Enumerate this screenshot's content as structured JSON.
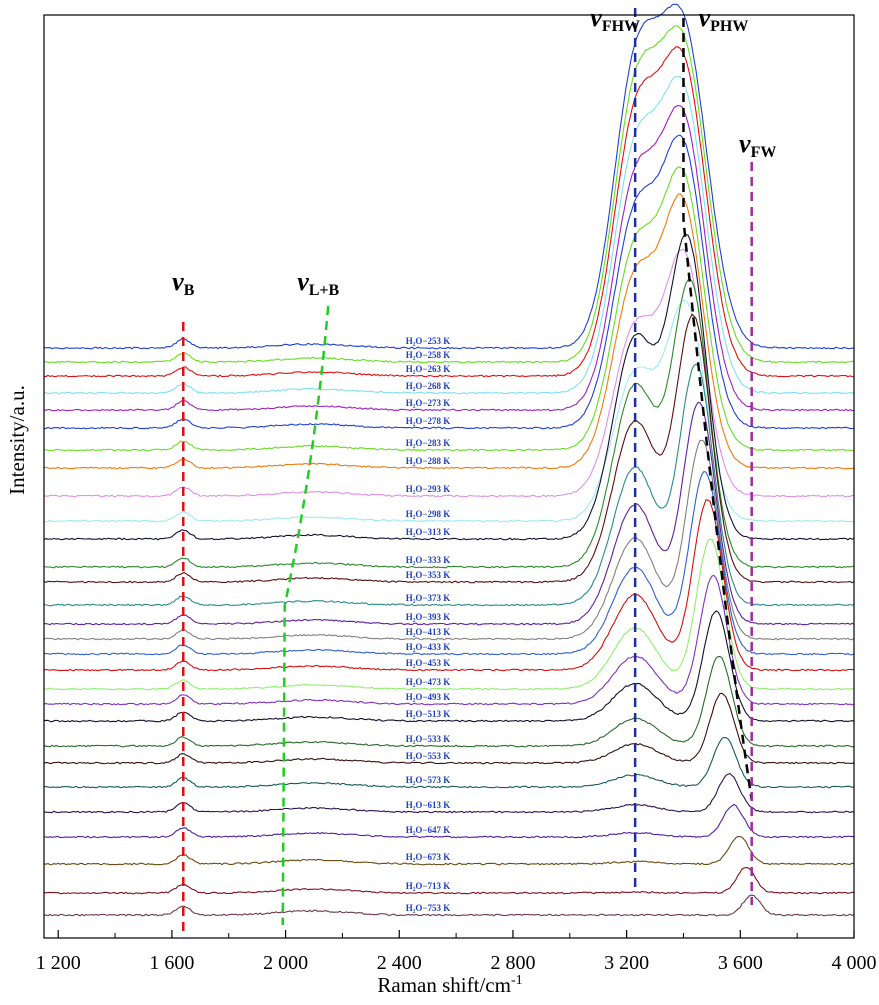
{
  "chart_data": {
    "type": "line",
    "title": "",
    "xlabel": "Raman shift/cm",
    "xlabel_superscript": "-1",
    "ylabel": "Intensity/a.u.",
    "xlim": [
      1150,
      4000
    ],
    "x_ticks": [
      1200,
      1600,
      2000,
      2400,
      2800,
      3200,
      3600,
      4000
    ],
    "x_tick_labels": [
      "1 200",
      "1 600",
      "2 000",
      "2 400",
      "2 800",
      "3 200",
      "3 600",
      "4 000"
    ],
    "grid": false,
    "legend": "inline labels next to each curve",
    "y_axis_ticks_shown": false,
    "series": [
      {
        "name": "H₂O−253 K",
        "color": "#2040d0",
        "peak_x": 3400,
        "fhw_shoulder": 1.0
      },
      {
        "name": "H₂O−258 K",
        "color": "#66dd22",
        "peak_x": 3400,
        "fhw_shoulder": 0.98
      },
      {
        "name": "H₂O−263 K",
        "color": "#e01010",
        "peak_x": 3400,
        "fhw_shoulder": 0.96
      },
      {
        "name": "H₂O−268 K",
        "color": "#7fe0f0",
        "peak_x": 3400,
        "fhw_shoulder": 0.94
      },
      {
        "name": "H₂O−273 K",
        "color": "#a020c0",
        "peak_x": 3400,
        "fhw_shoulder": 0.92
      },
      {
        "name": "H₂O−278 K",
        "color": "#2040d0",
        "peak_x": 3400,
        "fhw_shoulder": 0.9
      },
      {
        "name": "H₂O−283 K",
        "color": "#66dd22",
        "peak_x": 3400,
        "fhw_shoulder": 0.88
      },
      {
        "name": "H₂O−288 K",
        "color": "#f07a10",
        "peak_x": 3400,
        "fhw_shoulder": 0.86
      },
      {
        "name": "H₂O−293 K",
        "color": "#e090e8",
        "peak_x": 3405,
        "fhw_shoulder": 0.84
      },
      {
        "name": "H₂O−298 K",
        "color": "#a0e8f0",
        "peak_x": 3410,
        "fhw_shoulder": 0.82
      },
      {
        "name": "H₂O−313 K",
        "color": "#111133",
        "peak_x": 3415,
        "fhw_shoulder": 0.8
      },
      {
        "name": "H₂O−333 K",
        "color": "#2a8a2a",
        "peak_x": 3425,
        "fhw_shoulder": 0.76
      },
      {
        "name": "H₂O−353 K",
        "color": "#5a1010",
        "peak_x": 3435,
        "fhw_shoulder": 0.72
      },
      {
        "name": "H₂O−373 K",
        "color": "#2a8a8a",
        "peak_x": 3445,
        "fhw_shoulder": 0.68
      },
      {
        "name": "H₂O−393 K",
        "color": "#6020a0",
        "peak_x": 3455,
        "fhw_shoulder": 0.64
      },
      {
        "name": "H₂O−413 K",
        "color": "#808080",
        "peak_x": 3465,
        "fhw_shoulder": 0.6
      },
      {
        "name": "H₂O−433 K",
        "color": "#3060d0",
        "peak_x": 3475,
        "fhw_shoulder": 0.56
      },
      {
        "name": "H₂O−453 K",
        "color": "#d01010",
        "peak_x": 3485,
        "fhw_shoulder": 0.52
      },
      {
        "name": "H₂O−473 K",
        "color": "#90ee70",
        "peak_x": 3495,
        "fhw_shoulder": 0.48
      },
      {
        "name": "H₂O−493 K",
        "color": "#8030c0",
        "peak_x": 3505,
        "fhw_shoulder": 0.44
      },
      {
        "name": "H₂O−513 K",
        "color": "#101030",
        "peak_x": 3515,
        "fhw_shoulder": 0.4
      },
      {
        "name": "H₂O−533 K",
        "color": "#2a6a2a",
        "peak_x": 3525,
        "fhw_shoulder": 0.36
      },
      {
        "name": "H₂O−553 K",
        "color": "#3a1010",
        "peak_x": 3535,
        "fhw_shoulder": 0.32
      },
      {
        "name": "H₂O−573 K",
        "color": "#1a5a5a",
        "peak_x": 3545,
        "fhw_shoulder": 0.28
      },
      {
        "name": "H₂O−613 K",
        "color": "#301050",
        "peak_x": 3560,
        "fhw_shoulder": 0.22
      },
      {
        "name": "H₂O−647 K",
        "color": "#5020a0",
        "peak_x": 3575,
        "fhw_shoulder": 0.16
      },
      {
        "name": "H₂O−673 K",
        "color": "#6a4a10",
        "peak_x": 3595,
        "fhw_shoulder": 0.1
      },
      {
        "name": "H₂O−713 K",
        "color": "#801020",
        "peak_x": 3620,
        "fhw_shoulder": 0.04
      },
      {
        "name": "H₂O−753 K",
        "color": "#6a3a4a",
        "peak_x": 3640,
        "fhw_shoulder": 0.0
      }
    ],
    "annotations": [
      {
        "id": "vB",
        "label": "ν",
        "sub": "B",
        "x": 1640,
        "color": "#e01010",
        "style": "vertical-dashed"
      },
      {
        "id": "vLB",
        "label": "ν",
        "sub": "L+B",
        "color": "#22cc22",
        "style": "dashed-curve",
        "x_top": 2150,
        "x_bottom": 1990
      },
      {
        "id": "vFHW",
        "label": "ν",
        "sub": "FHW",
        "x": 3230,
        "color": "#1f2fa0",
        "style": "vertical-dashed"
      },
      {
        "id": "vPHW",
        "label": "ν",
        "sub": "PHW",
        "color": "#000000",
        "style": "dashed-curve",
        "x_top": 3400,
        "x_bottom": 3640
      },
      {
        "id": "vFW",
        "label": "ν",
        "sub": "FW",
        "x": 3640,
        "color": "#a02aa0",
        "style": "vertical-dashed"
      }
    ]
  }
}
